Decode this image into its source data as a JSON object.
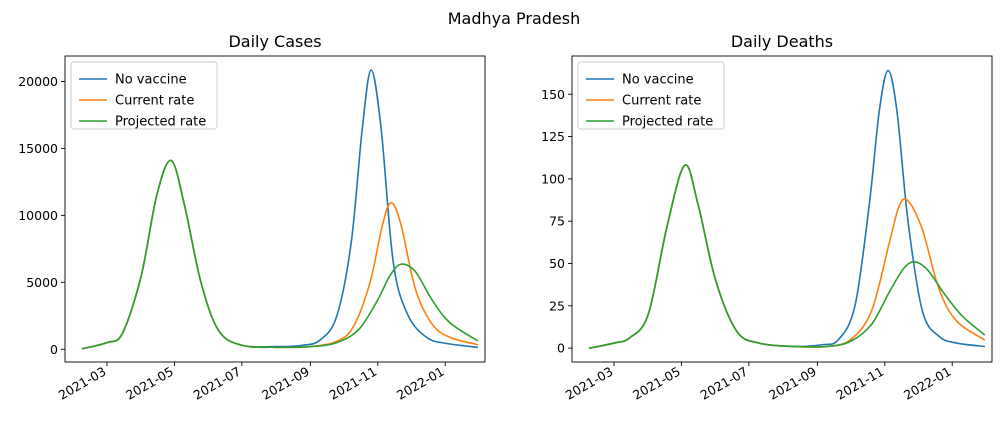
{
  "suptitle": "Madhya Pradesh",
  "colors": {
    "No vaccine": "#1f77b4",
    "Current rate": "#ff7f0e",
    "Projected rate": "#2ca02c"
  },
  "chart_data": [
    {
      "type": "line",
      "title": "Daily Cases",
      "xlabel": "",
      "ylabel": "",
      "x_type": "date",
      "xlim": [
        "2021-01-22",
        "2022-02-06"
      ],
      "ylim": [
        -950,
        21900
      ],
      "x_ticks": [
        "2021-03-01",
        "2021-05-01",
        "2021-07-01",
        "2021-09-01",
        "2021-11-01",
        "2022-01-01"
      ],
      "x_tick_labels": [
        "2021-03",
        "2021-05",
        "2021-07",
        "2021-09",
        "2021-11",
        "2022-01"
      ],
      "y_ticks": [
        0,
        5000,
        10000,
        15000,
        20000
      ],
      "y_tick_labels": [
        "0",
        "5000",
        "10000",
        "15000",
        "20000"
      ],
      "grid": false,
      "legend": "upper left",
      "series": [
        {
          "name": "No vaccine",
          "x": [
            "2021-02-07",
            "2021-03-01",
            "2021-03-15",
            "2021-04-01",
            "2021-04-15",
            "2021-04-28",
            "2021-05-10",
            "2021-05-25",
            "2021-06-10",
            "2021-07-01",
            "2021-08-01",
            "2021-08-25",
            "2021-09-10",
            "2021-09-25",
            "2021-10-08",
            "2021-10-18",
            "2021-10-26",
            "2021-11-04",
            "2021-11-15",
            "2021-11-28",
            "2021-12-15",
            "2022-01-01",
            "2022-01-30"
          ],
          "y": [
            50,
            500,
            1200,
            5500,
            11500,
            14100,
            10800,
            5000,
            1400,
            300,
            200,
            300,
            700,
            2500,
            8000,
            16500,
            20850,
            16500,
            6500,
            2600,
            900,
            450,
            150
          ]
        },
        {
          "name": "Current rate",
          "x": [
            "2021-02-07",
            "2021-03-01",
            "2021-03-15",
            "2021-04-01",
            "2021-04-15",
            "2021-04-28",
            "2021-05-10",
            "2021-05-25",
            "2021-06-10",
            "2021-07-01",
            "2021-08-01",
            "2021-09-01",
            "2021-09-25",
            "2021-10-10",
            "2021-10-25",
            "2021-11-05",
            "2021-11-13",
            "2021-11-22",
            "2021-12-05",
            "2021-12-20",
            "2022-01-05",
            "2022-01-30"
          ],
          "y": [
            50,
            500,
            1200,
            5500,
            11500,
            14100,
            10800,
            5000,
            1400,
            300,
            150,
            200,
            600,
            1700,
            5000,
            9200,
            10950,
            9300,
            4500,
            1900,
            900,
            350
          ]
        },
        {
          "name": "Projected rate",
          "x": [
            "2021-02-07",
            "2021-03-01",
            "2021-03-15",
            "2021-04-01",
            "2021-04-15",
            "2021-04-28",
            "2021-05-10",
            "2021-05-25",
            "2021-06-10",
            "2021-07-01",
            "2021-08-01",
            "2021-09-01",
            "2021-09-25",
            "2021-10-15",
            "2021-11-01",
            "2021-11-12",
            "2021-11-22",
            "2021-12-05",
            "2021-12-20",
            "2022-01-05",
            "2022-01-30"
          ],
          "y": [
            50,
            500,
            1200,
            5500,
            11500,
            14100,
            10800,
            5000,
            1400,
            300,
            150,
            200,
            500,
            1500,
            3700,
            5500,
            6350,
            5800,
            3700,
            2000,
            650
          ]
        }
      ]
    },
    {
      "type": "line",
      "title": "Daily Deaths",
      "xlabel": "",
      "ylabel": "",
      "x_type": "date",
      "xlim": [
        "2021-01-22",
        "2022-02-06"
      ],
      "ylim": [
        -8.2,
        172.6
      ],
      "x_ticks": [
        "2021-03-01",
        "2021-05-01",
        "2021-07-01",
        "2021-09-01",
        "2021-11-01",
        "2022-01-01"
      ],
      "x_tick_labels": [
        "2021-03",
        "2021-05",
        "2021-07",
        "2021-09",
        "2021-11",
        "2022-01"
      ],
      "y_ticks": [
        0,
        25,
        50,
        75,
        100,
        125,
        150
      ],
      "y_tick_labels": [
        "0",
        "25",
        "50",
        "75",
        "100",
        "125",
        "150"
      ],
      "grid": false,
      "legend": "upper left",
      "series": [
        {
          "name": "No vaccine",
          "x": [
            "2021-02-07",
            "2021-03-01",
            "2021-03-15",
            "2021-04-01",
            "2021-04-18",
            "2021-05-04",
            "2021-05-16",
            "2021-06-01",
            "2021-06-20",
            "2021-07-10",
            "2021-08-10",
            "2021-09-05",
            "2021-09-20",
            "2021-10-05",
            "2021-10-18",
            "2021-10-27",
            "2021-11-04",
            "2021-11-12",
            "2021-11-22",
            "2021-12-05",
            "2021-12-20",
            "2022-01-05",
            "2022-01-30"
          ],
          "y": [
            0,
            3,
            6,
            20,
            72,
            108,
            85,
            40,
            10,
            3,
            1,
            2,
            5,
            25,
            85,
            140,
            164,
            140,
            75,
            22,
            7,
            3,
            1
          ]
        },
        {
          "name": "Current rate",
          "x": [
            "2021-02-07",
            "2021-03-01",
            "2021-03-15",
            "2021-04-01",
            "2021-04-18",
            "2021-05-04",
            "2021-05-16",
            "2021-06-01",
            "2021-06-20",
            "2021-07-10",
            "2021-08-10",
            "2021-09-10",
            "2021-10-01",
            "2021-10-20",
            "2021-11-05",
            "2021-11-14",
            "2021-11-22",
            "2021-12-05",
            "2021-12-20",
            "2022-01-05",
            "2022-01-30"
          ],
          "y": [
            0,
            3,
            6,
            20,
            72,
            108,
            85,
            40,
            10,
            3,
            1,
            1,
            5,
            22,
            62,
            84,
            87,
            70,
            35,
            16,
            5
          ]
        },
        {
          "name": "Projected rate",
          "x": [
            "2021-02-07",
            "2021-03-01",
            "2021-03-15",
            "2021-04-01",
            "2021-04-18",
            "2021-05-04",
            "2021-05-16",
            "2021-06-01",
            "2021-06-20",
            "2021-07-10",
            "2021-08-10",
            "2021-09-10",
            "2021-10-01",
            "2021-10-20",
            "2021-11-05",
            "2021-11-18",
            "2021-11-28",
            "2021-12-10",
            "2021-12-25",
            "2022-01-10",
            "2022-01-30"
          ],
          "y": [
            0,
            3,
            6,
            20,
            72,
            108,
            85,
            40,
            10,
            3,
            1,
            1,
            4,
            14,
            33,
            47,
            51,
            46,
            32,
            19,
            8
          ]
        }
      ]
    }
  ]
}
